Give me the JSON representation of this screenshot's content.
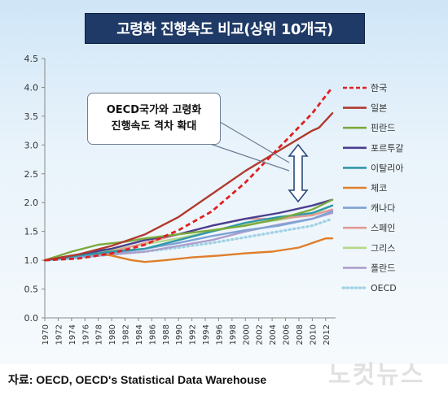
{
  "header": {
    "title": "고령화  진행속도 비교(상위 10개국)"
  },
  "callout": {
    "line1": "OECD국가와 고령화",
    "line2": "진행속도 격차 확대"
  },
  "source": "자료: OECD, OECD's Statistical Data Warehouse",
  "watermark": "노컷뉴스",
  "colors": {
    "한국": "#e02020",
    "일본": "#b03a2e",
    "핀란드": "#7caa3a",
    "포르투갈": "#4a3f8f",
    "이탈리아": "#2f98a8",
    "체코": "#e07e2a",
    "캐나다": "#7ea2d4",
    "스페인": "#e39a96",
    "그리스": "#b5d88a",
    "폴란드": "#ad9fcb",
    "OECD": "#9fd1e3"
  },
  "chart_data": {
    "type": "line",
    "title": "고령화  진행속도 비교(상위 10개국)",
    "xlabel": "",
    "ylabel": "",
    "ylim": [
      0,
      4.5
    ],
    "yticks": [
      "0.0",
      "0.5",
      "1.0",
      "1.5",
      "2.0",
      "2.5",
      "3.0",
      "3.5",
      "4.0",
      "4.5"
    ],
    "xlim": [
      1970,
      2013
    ],
    "xticks": [
      "1970",
      "1972",
      "1974",
      "1976",
      "1978",
      "1980",
      "1982",
      "1984",
      "1986",
      "1988",
      "1990",
      "1992",
      "1994",
      "1996",
      "1998",
      "2000",
      "2002",
      "2004",
      "2006",
      "2008",
      "2010",
      "2012"
    ],
    "grid": false,
    "legend_position": "right",
    "series": [
      {
        "name": "한국",
        "style": "dashed",
        "points": [
          [
            1970,
            1.0
          ],
          [
            1975,
            1.03
          ],
          [
            1980,
            1.12
          ],
          [
            1985,
            1.27
          ],
          [
            1990,
            1.52
          ],
          [
            1995,
            1.85
          ],
          [
            2000,
            2.35
          ],
          [
            2005,
            2.95
          ],
          [
            2010,
            3.55
          ],
          [
            2013,
            4.0
          ]
        ]
      },
      {
        "name": "일본",
        "style": "solid",
        "points": [
          [
            1970,
            1.0
          ],
          [
            1975,
            1.1
          ],
          [
            1980,
            1.25
          ],
          [
            1985,
            1.45
          ],
          [
            1990,
            1.75
          ],
          [
            1995,
            2.15
          ],
          [
            2000,
            2.55
          ],
          [
            2005,
            2.9
          ],
          [
            2010,
            3.25
          ],
          [
            2011,
            3.3
          ],
          [
            2013,
            3.55
          ]
        ]
      },
      {
        "name": "핀란드",
        "style": "solid",
        "points": [
          [
            1970,
            1.0
          ],
          [
            1974,
            1.15
          ],
          [
            1978,
            1.27
          ],
          [
            1982,
            1.32
          ],
          [
            1985,
            1.38
          ],
          [
            1990,
            1.45
          ],
          [
            1995,
            1.52
          ],
          [
            2000,
            1.6
          ],
          [
            2005,
            1.72
          ],
          [
            2010,
            1.88
          ],
          [
            2013,
            2.05
          ]
        ]
      },
      {
        "name": "포르투갈",
        "style": "solid",
        "points": [
          [
            1970,
            1.0
          ],
          [
            1975,
            1.1
          ],
          [
            1980,
            1.2
          ],
          [
            1985,
            1.35
          ],
          [
            1990,
            1.45
          ],
          [
            1995,
            1.6
          ],
          [
            2000,
            1.72
          ],
          [
            2005,
            1.82
          ],
          [
            2010,
            1.95
          ],
          [
            2013,
            2.05
          ]
        ]
      },
      {
        "name": "이탈리아",
        "style": "solid",
        "points": [
          [
            1970,
            1.0
          ],
          [
            1975,
            1.08
          ],
          [
            1980,
            1.15
          ],
          [
            1985,
            1.2
          ],
          [
            1990,
            1.35
          ],
          [
            1995,
            1.5
          ],
          [
            2000,
            1.65
          ],
          [
            2005,
            1.75
          ],
          [
            2010,
            1.82
          ],
          [
            2013,
            1.95
          ]
        ]
      },
      {
        "name": "체코",
        "style": "solid",
        "points": [
          [
            1970,
            1.0
          ],
          [
            1974,
            1.08
          ],
          [
            1978,
            1.12
          ],
          [
            1980,
            1.08
          ],
          [
            1983,
            1.0
          ],
          [
            1985,
            0.97
          ],
          [
            1988,
            1.0
          ],
          [
            1992,
            1.05
          ],
          [
            1996,
            1.08
          ],
          [
            2000,
            1.12
          ],
          [
            2004,
            1.15
          ],
          [
            2008,
            1.22
          ],
          [
            2012,
            1.38
          ],
          [
            2013,
            1.38
          ]
        ]
      },
      {
        "name": "캐나다",
        "style": "solid",
        "points": [
          [
            1970,
            1.0
          ],
          [
            1975,
            1.06
          ],
          [
            1980,
            1.12
          ],
          [
            1985,
            1.2
          ],
          [
            1990,
            1.3
          ],
          [
            1995,
            1.42
          ],
          [
            2000,
            1.52
          ],
          [
            2005,
            1.6
          ],
          [
            2010,
            1.72
          ],
          [
            2013,
            1.85
          ]
        ]
      },
      {
        "name": "스페인",
        "style": "solid",
        "points": [
          [
            1970,
            1.0
          ],
          [
            1975,
            1.08
          ],
          [
            1980,
            1.15
          ],
          [
            1985,
            1.3
          ],
          [
            1990,
            1.45
          ],
          [
            1995,
            1.6
          ],
          [
            2000,
            1.72
          ],
          [
            2005,
            1.72
          ],
          [
            2010,
            1.78
          ],
          [
            2013,
            1.88
          ]
        ]
      },
      {
        "name": "그리스",
        "style": "solid",
        "points": [
          [
            1970,
            1.0
          ],
          [
            1975,
            1.1
          ],
          [
            1980,
            1.18
          ],
          [
            1985,
            1.28
          ],
          [
            1990,
            1.38
          ],
          [
            1995,
            1.5
          ],
          [
            2000,
            1.62
          ],
          [
            2005,
            1.7
          ],
          [
            2010,
            1.8
          ],
          [
            2013,
            1.95
          ]
        ]
      },
      {
        "name": "폴란드",
        "style": "solid",
        "points": [
          [
            1970,
            1.0
          ],
          [
            1975,
            1.05
          ],
          [
            1980,
            1.1
          ],
          [
            1985,
            1.15
          ],
          [
            1990,
            1.25
          ],
          [
            1995,
            1.35
          ],
          [
            2000,
            1.5
          ],
          [
            2005,
            1.62
          ],
          [
            2010,
            1.72
          ],
          [
            2013,
            1.82
          ]
        ]
      },
      {
        "name": "OECD",
        "style": "dotted",
        "points": [
          [
            1970,
            1.0
          ],
          [
            1975,
            1.04
          ],
          [
            1980,
            1.1
          ],
          [
            1985,
            1.15
          ],
          [
            1990,
            1.22
          ],
          [
            1995,
            1.3
          ],
          [
            2000,
            1.4
          ],
          [
            2005,
            1.5
          ],
          [
            2010,
            1.6
          ],
          [
            2013,
            1.72
          ]
        ]
      }
    ]
  }
}
